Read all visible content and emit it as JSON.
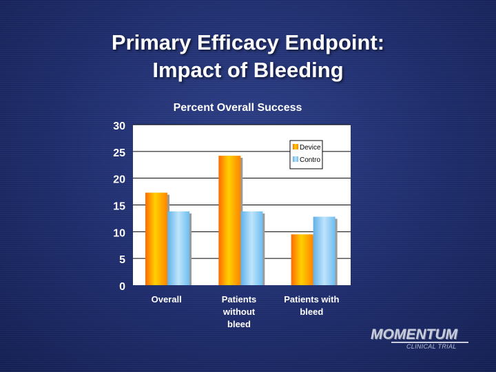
{
  "slide": {
    "title_line1": "Primary Efficacy Endpoint:",
    "title_line2": "Impact of Bleeding"
  },
  "logo": {
    "main": "MOMENTUM",
    "sub": "CLINICAL TRIAL"
  },
  "colors": {
    "device": "#ff9d00",
    "control": "#7cc4f2",
    "plot_bg": "#ffffff",
    "text": "#ffffff"
  },
  "chart_data": {
    "type": "bar",
    "title": "Percent Overall Success",
    "categories": [
      [
        "Overall"
      ],
      [
        "Patients",
        "without",
        "bleed"
      ],
      [
        "Patients with",
        "bleed"
      ]
    ],
    "series": [
      {
        "name": "Device",
        "values": [
          17.3,
          24.2,
          9.5
        ]
      },
      {
        "name": "Contro",
        "values": [
          13.8,
          13.8,
          12.8
        ]
      }
    ],
    "yticks": [
      0,
      5,
      10,
      15,
      20,
      25,
      30
    ],
    "ylim": [
      0,
      30
    ],
    "xlabel": "",
    "ylabel": "",
    "grid": true,
    "legend": "top-right"
  }
}
